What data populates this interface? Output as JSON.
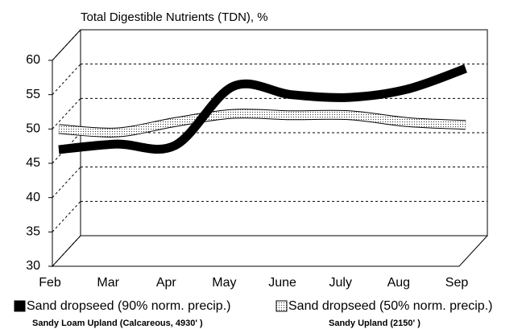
{
  "chart_data": {
    "type": "line",
    "title": "Total Digestible Nutrients (TDN), %",
    "categories": [
      "Feb",
      "Mar",
      "Apr",
      "May",
      "June",
      "July",
      "Aug",
      "Sep"
    ],
    "series": [
      {
        "name": "Sand dropseed (90% norm. precip.)",
        "subtitle": "Sandy Loam Upland (Calcareous, 4930' )",
        "color": "#000000",
        "values": [
          47,
          47.8,
          47.6,
          56.2,
          55,
          54.6,
          55.8,
          58.8
        ]
      },
      {
        "name": "Sand dropseed (50% norm. precip.)",
        "subtitle": "Sandy Upland (2150' )",
        "color": "#ffffff",
        "values": [
          50,
          49.5,
          51,
          52.2,
          52,
          52,
          51,
          50.6
        ]
      }
    ],
    "ylim": [
      30,
      60
    ],
    "yticks": [
      30,
      35,
      40,
      45,
      50,
      55,
      60
    ],
    "grid": true
  }
}
